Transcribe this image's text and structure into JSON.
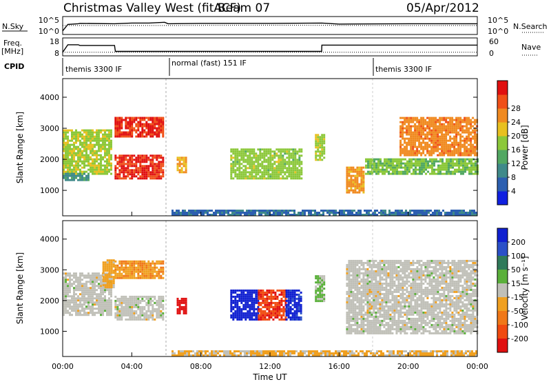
{
  "header": {
    "station": "Christmas Valley West (fitACF)",
    "beam": "Beam 07",
    "date": "05/Apr/2012"
  },
  "noise_panel": {
    "left_label": "N.Sky",
    "left_ticks": [
      "10^5",
      "10^0"
    ],
    "right_label": "N.Search",
    "right_ticks": [
      "10^5",
      "10^0"
    ]
  },
  "freq_panel": {
    "left_label_1": "Freq.",
    "left_label_2": "[MHz]",
    "left_ticks": [
      "18",
      "8"
    ],
    "right_label": "Nave",
    "right_ticks": [
      "60",
      "0"
    ]
  },
  "cpid": {
    "label": "CPID",
    "modes": [
      "themis 3300 IF",
      "normal (fast) 151 IF",
      "themis 3300 IF"
    ]
  },
  "axes": {
    "ylabel": "Slant Range [km]",
    "xlabel": "Time UT",
    "x_ticks": [
      "00:00",
      "04:00",
      "08:00",
      "12:00",
      "16:00",
      "20:00",
      "00:00"
    ],
    "y_ticks": [
      "1000",
      "2000",
      "3000",
      "4000"
    ]
  },
  "colorbars": {
    "power": {
      "label": "Power [dB]",
      "ticks": [
        "4",
        "8",
        "12",
        "16",
        "20",
        "24",
        "28"
      ],
      "colors": [
        "#1020e0",
        "#2c5fb0",
        "#3f8a8a",
        "#52a862",
        "#8cc83a",
        "#e8c020",
        "#f08a20",
        "#f05018",
        "#e01010"
      ]
    },
    "velocity": {
      "label": "Velocity [m s⁻¹]",
      "ticks": [
        "200",
        "100",
        "50",
        "15",
        "-15",
        "-50",
        "-100",
        "-200"
      ],
      "colors": [
        "#1020d0",
        "#2a50c8",
        "#2f7a5a",
        "#5ab03a",
        "#c0c0b8",
        "#f0a020",
        "#f07818",
        "#f04a10",
        "#e01010"
      ]
    }
  },
  "chart_data": [
    {
      "type": "line",
      "title": "N.Sky / N.Search",
      "x_range_hours": [
        0,
        24
      ],
      "series": [
        {
          "name": "N.Sky",
          "x": [
            0,
            0.3,
            0.9,
            1.0,
            3.0,
            4.0,
            5.0,
            5.9,
            6.1,
            8.0,
            12.0,
            15.0,
            16.0,
            20.0,
            24.0
          ],
          "values": [
            1.0,
            2.8,
            3.0,
            3.1,
            3.0,
            3.2,
            3.2,
            3.4,
            3.0,
            3.1,
            3.1,
            3.2,
            2.9,
            3.0,
            3.0
          ]
        },
        {
          "name": "N.Search",
          "x": [
            0,
            6,
            12,
            18,
            24
          ],
          "values": [
            2.5,
            2.5,
            2.6,
            2.5,
            2.5
          ]
        }
      ]
    },
    {
      "type": "line",
      "title": "Freq. / Nave",
      "x_range_hours": [
        0,
        24
      ],
      "series": [
        {
          "name": "Freq. [MHz]",
          "x": [
            0,
            0.3,
            0.9,
            1.0,
            3.0,
            3.05,
            14.99,
            15.0,
            24.0
          ],
          "values": [
            10.0,
            14.2,
            14.2,
            13.8,
            13.8,
            10.5,
            10.5,
            14.0,
            14.0
          ]
        },
        {
          "name": "Nave",
          "x": [
            0,
            6,
            12,
            18,
            24
          ],
          "values": [
            12,
            12,
            12,
            12,
            12
          ]
        }
      ]
    },
    {
      "type": "heatmap",
      "title": "Power [dB]",
      "xlabel": "Time UT",
      "ylabel": "Slant Range [km]",
      "x_range_hours": [
        0,
        24
      ],
      "ylim": [
        180,
        4600
      ],
      "value_range": [
        0,
        30
      ],
      "regions": [
        {
          "t0": 0.0,
          "t1": 2.8,
          "r0": 1500,
          "r1": 2900,
          "value": 16
        },
        {
          "t0": 0.0,
          "t1": 1.5,
          "r0": 1300,
          "r1": 1550,
          "value": 9
        },
        {
          "t0": 3.0,
          "t1": 5.8,
          "r0": 2700,
          "r1": 3300,
          "value": 27
        },
        {
          "t0": 3.0,
          "t1": 5.8,
          "r0": 1350,
          "r1": 2100,
          "value": 27
        },
        {
          "t0": 6.6,
          "t1": 7.1,
          "r0": 1550,
          "r1": 2050,
          "value": 20
        },
        {
          "t0": 9.7,
          "t1": 13.8,
          "r0": 1350,
          "r1": 2300,
          "value": 15
        },
        {
          "t0": 14.6,
          "t1": 15.1,
          "r0": 1950,
          "r1": 2800,
          "value": 16
        },
        {
          "t0": 16.4,
          "t1": 17.4,
          "r0": 900,
          "r1": 1700,
          "value": 21
        },
        {
          "t0": 17.5,
          "t1": 24.0,
          "r0": 1500,
          "r1": 2000,
          "value": 14
        },
        {
          "t0": 19.5,
          "t1": 24.0,
          "r0": 2100,
          "r1": 3300,
          "value": 22
        },
        {
          "t0": 6.3,
          "t1": 24.0,
          "r0": 180,
          "r1": 350,
          "value": 6
        }
      ]
    },
    {
      "type": "heatmap",
      "title": "Velocity [m s⁻¹]",
      "xlabel": "Time UT",
      "ylabel": "Slant Range [km]",
      "x_range_hours": [
        0,
        24
      ],
      "ylim": [
        180,
        4600
      ],
      "value_range": [
        -200,
        200
      ],
      "regions": [
        {
          "t0": 0.0,
          "t1": 2.8,
          "r0": 1500,
          "r1": 2900,
          "value": 0
        },
        {
          "t0": 2.3,
          "t1": 3.0,
          "r0": 2400,
          "r1": 3300,
          "value": -40
        },
        {
          "t0": 3.0,
          "t1": 5.8,
          "r0": 2700,
          "r1": 3300,
          "value": -60
        },
        {
          "t0": 3.0,
          "t1": 5.8,
          "r0": 1350,
          "r1": 2100,
          "value": 0
        },
        {
          "t0": 6.6,
          "t1": 7.1,
          "r0": 1550,
          "r1": 2050,
          "value": -200
        },
        {
          "t0": 9.7,
          "t1": 11.3,
          "r0": 1350,
          "r1": 2300,
          "value": 180
        },
        {
          "t0": 11.3,
          "t1": 12.9,
          "r0": 1350,
          "r1": 2300,
          "value": -150
        },
        {
          "t0": 12.9,
          "t1": 13.8,
          "r0": 1350,
          "r1": 2300,
          "value": 170
        },
        {
          "t0": 14.6,
          "t1": 15.1,
          "r0": 1950,
          "r1": 2800,
          "value": 30
        },
        {
          "t0": 16.4,
          "t1": 24.0,
          "r0": 900,
          "r1": 3300,
          "value": 0
        },
        {
          "t0": 6.3,
          "t1": 24.0,
          "r0": 180,
          "r1": 350,
          "value": -30
        }
      ]
    }
  ]
}
